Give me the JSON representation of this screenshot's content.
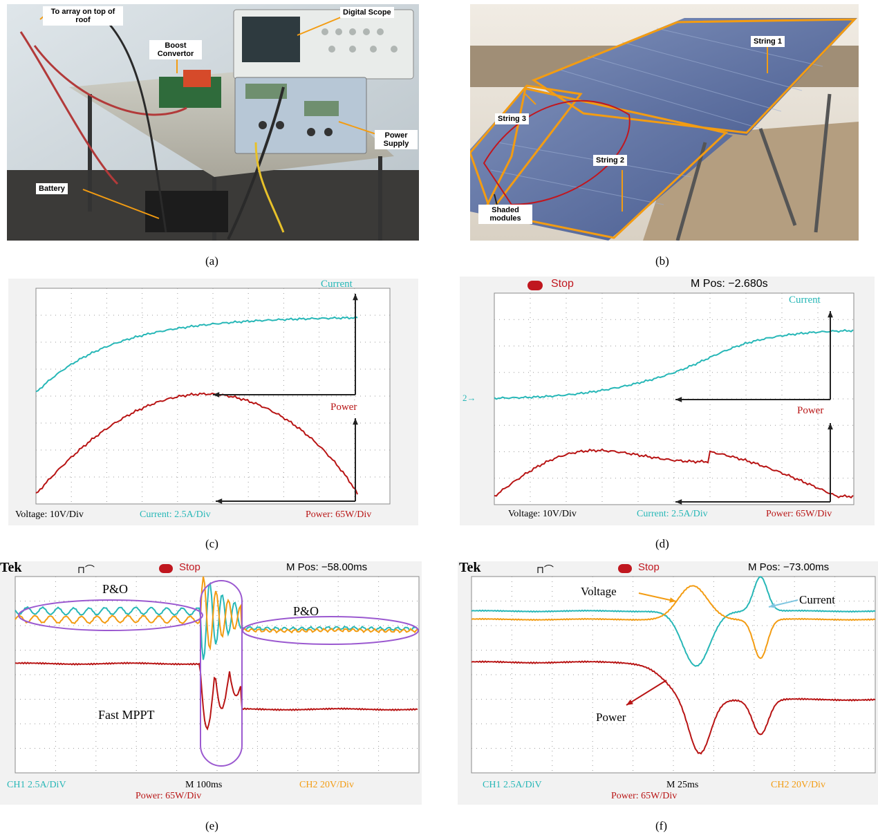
{
  "colors": {
    "current": "#27b7b7",
    "power": "#b81414",
    "voltage": "#f39c12",
    "grid": "#9a9a9a",
    "arrow": "#222222",
    "annot_ellipse": "#9b59d0",
    "photo_arrow": "#f39c12"
  },
  "captions": {
    "a": "(a)",
    "b": "(b)",
    "c": "(c)",
    "d": "(d)",
    "e": "(e)",
    "f": "(f)"
  },
  "panel_a": {
    "labels": {
      "roof": "To array on top of roof",
      "scope": "Digital Scope",
      "boost": "Boost Convertor",
      "supply": "Power Supply",
      "battery": "Battery"
    }
  },
  "panel_b": {
    "labels": {
      "string1": "String 1",
      "string2": "String 2",
      "string3": "String 3",
      "shaded": "Shaded modules"
    }
  },
  "panel_c": {
    "current_label": "Current",
    "power_label": "Power",
    "footer": {
      "voltage": "Voltage: 10V/Div",
      "current": "Current: 2.5A/Div",
      "power": "Power: 65W/Div"
    }
  },
  "panel_d": {
    "stop": "Stop",
    "mpos": "M Pos: −2.680s",
    "marker": "2→",
    "current_label": "Current",
    "power_label": "Power",
    "footer": {
      "voltage": "Voltage: 10V/Div",
      "current": "Current: 2.5A/Div",
      "power": "Power: 65W/Div"
    }
  },
  "panel_e": {
    "tek": "Tek",
    "stop": "Stop",
    "mpos": "M Pos: −58.00ms",
    "po_left": "P&O",
    "po_right": "P&O",
    "fast": "Fast MPPT",
    "ch1": "CH1  2.5A/DiV",
    "m": "M 100ms",
    "ch2": "CH2 20V/Div",
    "power": "Power: 65W/Div"
  },
  "panel_f": {
    "tek": "Tek",
    "stop": "Stop",
    "mpos": "M Pos: −73.00ms",
    "voltage_label": "Voltage",
    "current_label": "Current",
    "power_label": "Power",
    "ch1": "CH1  2.5A/DiV",
    "m": "M 25ms",
    "ch2": "CH2 20V/Div",
    "power": "Power: 65W/Div"
  }
}
